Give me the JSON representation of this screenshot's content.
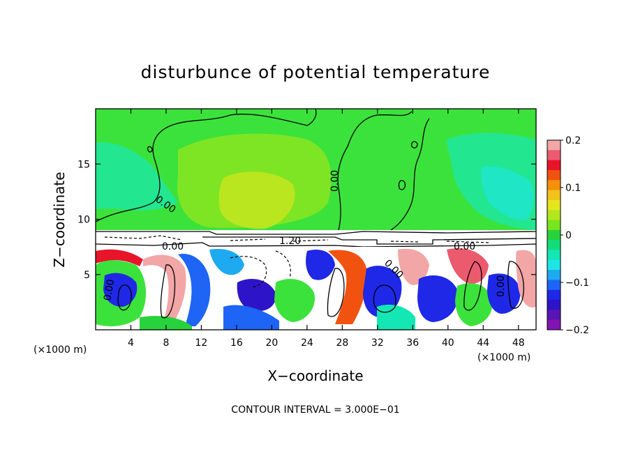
{
  "chart_data": {
    "type": "heatmap",
    "title": "disturbunce of potential temperature",
    "xlabel": "X−coordinate",
    "ylabel": "Z−coordinate",
    "x_unit_left": "(×1000 m)",
    "x_unit_right": "(×1000 m)",
    "xlim": [
      0,
      50
    ],
    "ylim": [
      0,
      20
    ],
    "xticks": [
      {
        "value": 4,
        "label": "4"
      },
      {
        "value": 8,
        "label": "8"
      },
      {
        "value": 12,
        "label": "12"
      },
      {
        "value": 16,
        "label": "16"
      },
      {
        "value": 20,
        "label": "20"
      },
      {
        "value": 24,
        "label": "24"
      },
      {
        "value": 28,
        "label": "28"
      },
      {
        "value": 32,
        "label": "32"
      },
      {
        "value": 36,
        "label": "36"
      },
      {
        "value": 40,
        "label": "40"
      },
      {
        "value": 44,
        "label": "44"
      },
      {
        "value": 48,
        "label": "48"
      }
    ],
    "yticks": [
      {
        "value": 5,
        "label": "5"
      },
      {
        "value": 10,
        "label": "10"
      },
      {
        "value": 15,
        "label": "15"
      }
    ],
    "colorbar": {
      "range": [
        -0.2,
        0.2
      ],
      "ticks": [
        {
          "value": 0.2,
          "label": "0.2"
        },
        {
          "value": 0.1,
          "label": "0.1"
        },
        {
          "value": 0,
          "label": "0"
        },
        {
          "value": -0.1,
          "label": "−0.1"
        },
        {
          "value": -0.2,
          "label": "−0.2"
        }
      ],
      "colors": [
        "#f2a6a6",
        "#ec5a6e",
        "#e8142a",
        "#f25210",
        "#f58f0c",
        "#f2c21a",
        "#e6e61e",
        "#b4e61e",
        "#78e61e",
        "#28d23c",
        "#14dc78",
        "#14e6b4",
        "#1ee6e6",
        "#1eaaf0",
        "#1e64f5",
        "#1e28e6",
        "#2d14c8",
        "#5a14b4",
        "#8214b4"
      ]
    },
    "contour_labels": [
      "0.00",
      "0.00",
      "0.00",
      "0.00",
      "1.20",
      "0.00",
      "0.00",
      "0.00"
    ],
    "contour_interval_text": "CONTOUR INTERVAL = 3.000E−01"
  }
}
